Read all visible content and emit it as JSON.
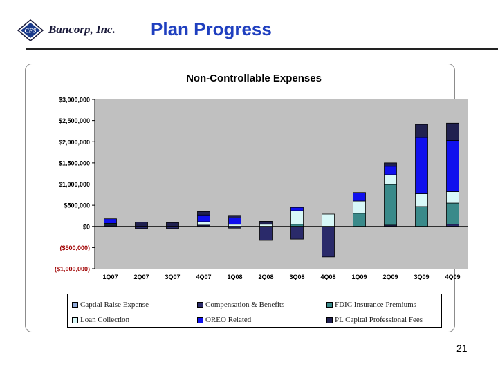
{
  "header": {
    "brand_text": "Bancorp, Inc.",
    "logo_text": "CFS",
    "title": "Plan Progress"
  },
  "page_number": "21",
  "colors": {
    "accent_title": "#1f3fbf",
    "plot_bg": "#c0c0c0",
    "negative_tick": "#a00000"
  },
  "chart_data": {
    "type": "bar",
    "stacked": true,
    "title": "Non-Controllable Expenses",
    "xlabel": "",
    "ylabel": "",
    "categories": [
      "1Q07",
      "2Q07",
      "3Q07",
      "4Q07",
      "1Q08",
      "2Q08",
      "3Q08",
      "4Q08",
      "1Q09",
      "2Q09",
      "3Q09",
      "4Q09"
    ],
    "ylim": [
      -1000000,
      3000000
    ],
    "yticks": [
      3000000,
      2500000,
      2000000,
      1500000,
      1000000,
      500000,
      0,
      -500000,
      -1000000
    ],
    "ytick_labels": [
      "$3,000,000",
      "$2,500,000",
      "$2,000,000",
      "$1,500,000",
      "$1,000,000",
      "$500,000",
      "$0",
      "($500,000)",
      "($1,000,000)"
    ],
    "grid": false,
    "legend_position": "bottom",
    "series": [
      {
        "name": "Captial Raise Expense",
        "color": "#8fa8d8",
        "values": [
          0,
          0,
          0,
          0,
          0,
          0,
          0,
          0,
          0,
          0,
          0,
          0
        ]
      },
      {
        "name": "Compensation & Benefits",
        "color": "#2a2a6a",
        "values": [
          30000,
          -50000,
          -50000,
          30000,
          -40000,
          -330000,
          -300000,
          -720000,
          0,
          30000,
          0,
          50000
        ]
      },
      {
        "name": "FDIC Insurance Premiums",
        "color": "#3a8a8a",
        "values": [
          20000,
          0,
          0,
          0,
          0,
          0,
          50000,
          0,
          310000,
          960000,
          470000,
          500000
        ]
      },
      {
        "name": "Loan Collection",
        "color": "#d8f8f8",
        "values": [
          20000,
          0,
          0,
          80000,
          50000,
          50000,
          320000,
          290000,
          290000,
          230000,
          300000,
          270000
        ]
      },
      {
        "name": "OREO Related",
        "color": "#1010ee",
        "values": [
          110000,
          0,
          0,
          160000,
          150000,
          0,
          80000,
          0,
          200000,
          200000,
          1330000,
          1210000
        ]
      },
      {
        "name": "PL Capital Professional Fees",
        "color": "#202050",
        "values": [
          0,
          100000,
          90000,
          80000,
          60000,
          70000,
          0,
          0,
          0,
          80000,
          310000,
          410000
        ]
      }
    ]
  }
}
